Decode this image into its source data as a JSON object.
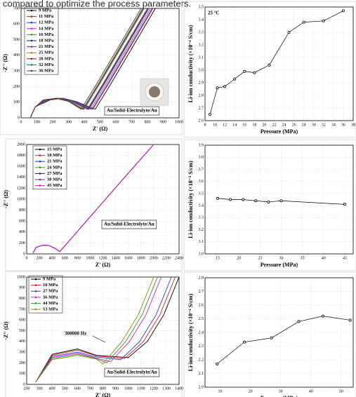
{
  "caption": "compared to optimize the process parameters.",
  "chart_data": [
    {
      "type": "line",
      "xlabel": "Z' (Ω)",
      "ylabel": "-Z'' (Ω)",
      "xlim": [
        0,
        1000
      ],
      "ylim": [
        0,
        700
      ],
      "xticks": [
        0,
        100,
        200,
        300,
        400,
        500,
        600,
        700,
        800,
        900,
        1000
      ],
      "yticks": [
        0,
        100,
        200,
        300,
        400,
        500,
        600,
        700
      ],
      "grid": true,
      "annotations": [
        "Au/Solid-Electrolyte/Au"
      ],
      "series": [
        {
          "name": "9 MPa",
          "color": "#000000",
          "x": [
            60,
            90,
            185,
            265,
            345,
            470,
            570,
            850
          ],
          "values": [
            5,
            70,
            115,
            125,
            105,
            55,
            220,
            700
          ]
        },
        {
          "name": "11 MPa",
          "color": "#e0201a",
          "x": [
            60,
            90,
            177,
            257,
            337,
            455,
            555,
            835
          ],
          "values": [
            5,
            70,
            115,
            125,
            105,
            55,
            220,
            700
          ]
        },
        {
          "name": "12 MPa",
          "color": "#1f3fd6",
          "x": [
            60,
            90,
            175,
            255,
            335,
            450,
            550,
            830
          ],
          "values": [
            5,
            70,
            115,
            125,
            105,
            55,
            220,
            700
          ]
        },
        {
          "name": "14 MPa",
          "color": "#d81fc8",
          "x": [
            60,
            90,
            170,
            250,
            330,
            440,
            540,
            820
          ],
          "values": [
            5,
            70,
            115,
            125,
            105,
            55,
            220,
            700
          ]
        },
        {
          "name": "16 MPa",
          "color": "#2e9a2e",
          "x": [
            60,
            90,
            165,
            245,
            325,
            430,
            530,
            810
          ],
          "values": [
            5,
            70,
            115,
            125,
            105,
            55,
            220,
            700
          ]
        },
        {
          "name": "18 MPa",
          "color": "#1b1b80",
          "x": [
            60,
            90,
            162,
            242,
            322,
            425,
            525,
            805
          ],
          "values": [
            5,
            70,
            115,
            125,
            105,
            55,
            220,
            700
          ]
        },
        {
          "name": "21 MPa",
          "color": "#7b2a8e",
          "x": [
            60,
            90,
            160,
            240,
            320,
            420,
            520,
            800
          ],
          "values": [
            5,
            70,
            115,
            125,
            105,
            55,
            220,
            700
          ]
        },
        {
          "name": "25 MPa",
          "color": "#8a8a1a",
          "x": [
            60,
            90,
            150,
            230,
            310,
            400,
            500,
            780
          ],
          "values": [
            5,
            70,
            115,
            125,
            105,
            55,
            220,
            700
          ]
        },
        {
          "name": "28 MPa",
          "color": "#8b1a1a",
          "x": [
            60,
            90,
            147,
            227,
            307,
            395,
            495,
            775
          ],
          "values": [
            5,
            70,
            115,
            125,
            105,
            55,
            220,
            700
          ]
        },
        {
          "name": "32 MPa",
          "color": "#1a6e8b",
          "x": [
            60,
            90,
            145,
            225,
            305,
            390,
            490,
            770
          ],
          "values": [
            5,
            70,
            115,
            125,
            105,
            55,
            220,
            700
          ]
        },
        {
          "name": "36 MPa",
          "color": "#5a3a1a",
          "x": [
            60,
            90,
            140,
            220,
            300,
            380,
            480,
            760
          ],
          "values": [
            5,
            70,
            115,
            125,
            105,
            55,
            220,
            700
          ]
        }
      ]
    },
    {
      "type": "line",
      "xlabel": "Pressure (MPa)",
      "ylabel": "Li-ion conductivity (×10⁻⁴ S/cm)",
      "xlim": [
        8,
        38
      ],
      "ylim": [
        2.6,
        3.5
      ],
      "xticks": [
        8,
        10,
        12,
        14,
        16,
        18,
        20,
        22,
        24,
        26,
        28,
        30,
        32,
        34,
        36,
        38
      ],
      "yticks": [
        2.6,
        2.7,
        2.8,
        2.9,
        {
          "value": 3,
          "label": "3.0"
        },
        3.1,
        3.2,
        3.3,
        3.4,
        3.5
      ],
      "grid": true,
      "annotations": [
        "25 °C"
      ],
      "color": "#000000",
      "x": [
        9,
        10.5,
        12,
        14,
        16,
        18,
        21,
        25,
        28,
        32,
        36
      ],
      "values": [
        2.65,
        2.86,
        2.87,
        2.93,
        2.99,
        2.98,
        3.04,
        3.3,
        3.38,
        3.39,
        3.47
      ]
    },
    {
      "type": "line",
      "xlabel": "Z' (Ω)",
      "ylabel": "-Z'' (Ω)",
      "xlim": [
        0,
        2400
      ],
      "ylim": [
        0,
        2000
      ],
      "xticks": [
        0,
        200,
        400,
        600,
        800,
        1000,
        1200,
        1400,
        1600,
        1800,
        2000,
        2200,
        2400
      ],
      "yticks": [
        0,
        200,
        400,
        600,
        800,
        1000,
        1200,
        1400,
        1600,
        1800,
        2000
      ],
      "grid": true,
      "annotations": [
        "Au/Solid-Electrolyte/Au"
      ],
      "series": [
        {
          "name": "15 MPa",
          "color": "#000000",
          "x": [
            100,
            150,
            250,
            350,
            450,
            520,
            1000,
            1500,
            2000
          ],
          "values": [
            20,
            120,
            160,
            155,
            100,
            40,
            678,
            1343,
            2000
          ]
        },
        {
          "name": "18 MPa",
          "color": "#e0201a",
          "x": [
            100,
            150,
            250,
            350,
            450,
            520,
            1000,
            1500,
            2000
          ],
          "values": [
            20,
            120,
            160,
            155,
            100,
            40,
            678,
            1343,
            2000
          ]
        },
        {
          "name": "21 MPa",
          "color": "#1f3fd6",
          "x": [
            100,
            150,
            250,
            350,
            450,
            520,
            1000,
            1500,
            2000
          ],
          "values": [
            20,
            120,
            160,
            155,
            100,
            40,
            678,
            1343,
            2000
          ]
        },
        {
          "name": "24 MPa",
          "color": "#2e9a2e",
          "x": [
            100,
            150,
            250,
            350,
            450,
            520,
            1000,
            1500,
            2000
          ],
          "values": [
            20,
            120,
            160,
            155,
            100,
            40,
            678,
            1343,
            2000
          ]
        },
        {
          "name": "27 MPa",
          "color": "#1b1b80",
          "x": [
            100,
            150,
            250,
            350,
            450,
            520,
            1000,
            1500,
            2000
          ],
          "values": [
            20,
            120,
            160,
            155,
            100,
            40,
            678,
            1343,
            2000
          ]
        },
        {
          "name": "30 MPa",
          "color": "#7b2a8e",
          "x": [
            100,
            150,
            250,
            350,
            450,
            520,
            1000,
            1500,
            2000
          ],
          "values": [
            20,
            120,
            160,
            155,
            100,
            40,
            678,
            1343,
            2000
          ]
        },
        {
          "name": "45 MPa",
          "color": "#d81fc8",
          "x": [
            100,
            150,
            250,
            350,
            450,
            520,
            1000,
            1500,
            2000
          ],
          "values": [
            20,
            120,
            160,
            155,
            100,
            40,
            678,
            1343,
            2000
          ]
        }
      ]
    },
    {
      "type": "line",
      "xlabel": "Pressure (MPa)",
      "ylabel": "Li-ion conductivity (×10⁻⁴ S/cm)",
      "xlim": [
        12,
        47
      ],
      "ylim": [
        3,
        3.9
      ],
      "xticks": [
        15,
        20,
        25,
        30,
        35,
        40,
        45
      ],
      "yticks": [
        {
          "value": 3,
          "label": "3.0"
        },
        3.1,
        3.2,
        3.3,
        3.4,
        3.5,
        3.6,
        3.7,
        3.8,
        3.9
      ],
      "grid": true,
      "color": "#000000",
      "x": [
        15,
        18,
        21,
        24,
        27,
        30,
        45
      ],
      "values": [
        3.46,
        3.45,
        3.45,
        3.44,
        3.43,
        3.44,
        3.41
      ]
    },
    {
      "type": "line",
      "xlabel": "Z' (Ω)",
      "ylabel": "-Z'' (Ω)",
      "xlim": [
        200,
        1400
      ],
      "ylim": [
        0,
        1000
      ],
      "xticks": [
        200,
        300,
        400,
        500,
        600,
        700,
        800,
        900,
        1000,
        1100,
        1200,
        1300,
        1400
      ],
      "yticks": [
        0,
        100,
        200,
        300,
        400,
        500,
        600,
        700,
        800,
        900,
        1000
      ],
      "grid": true,
      "annotations": [
        "300000 Hz",
        "Au/Solid-Electrolyte/Au"
      ],
      "series": [
        {
          "name": "9 MPa",
          "color": "#000000",
          "x": [
            270,
            400,
            600,
            750,
            1000,
            1150,
            1280,
            1400
          ],
          "values": [
            20,
            280,
            330,
            270,
            250,
            400,
            650,
            1000
          ]
        },
        {
          "name": "18 MPa",
          "color": "#e0201a",
          "x": [
            270,
            400,
            600,
            750,
            970,
            1120,
            1250,
            1370
          ],
          "values": [
            20,
            270,
            320,
            265,
            240,
            400,
            650,
            1000
          ]
        },
        {
          "name": "27 MPa",
          "color": "#1f3fd6",
          "x": [
            270,
            400,
            600,
            750,
            940,
            1090,
            1220,
            1340
          ],
          "values": [
            20,
            260,
            300,
            255,
            230,
            400,
            650,
            1000
          ]
        },
        {
          "name": "36 MPa",
          "color": "#d81fc8",
          "x": [
            270,
            400,
            600,
            750,
            860,
            1010,
            1140,
            1260
          ],
          "values": [
            20,
            250,
            290,
            245,
            210,
            400,
            650,
            1000
          ]
        },
        {
          "name": "44 MPa",
          "color": "#2e9a2e",
          "x": [
            270,
            400,
            600,
            750,
            830,
            980,
            1110,
            1230
          ],
          "values": [
            20,
            240,
            280,
            240,
            200,
            400,
            650,
            1000
          ]
        },
        {
          "name": "53 MPa",
          "color": "#8a8a1a",
          "x": [
            270,
            400,
            600,
            750,
            800,
            950,
            1080,
            1200
          ],
          "values": [
            20,
            230,
            270,
            235,
            190,
            400,
            650,
            1000
          ]
        }
      ]
    },
    {
      "type": "line",
      "xlabel": "Pressure (MPa)",
      "ylabel": "Li-ion conductivity (×10⁻⁴ S/cm)",
      "xlim": [
        5,
        54
      ],
      "ylim": [
        2,
        2.8
      ],
      "xticks": [
        10,
        20,
        30,
        40,
        50
      ],
      "yticks": [
        {
          "value": 2,
          "label": "2.0"
        },
        2.1,
        2.2,
        2.3,
        2.4,
        2.5,
        2.6,
        2.7,
        2.8
      ],
      "grid": true,
      "color": "#000000",
      "x": [
        9,
        18,
        27,
        36,
        44,
        53
      ],
      "values": [
        2.17,
        2.33,
        2.36,
        2.48,
        2.52,
        2.49
      ]
    }
  ]
}
